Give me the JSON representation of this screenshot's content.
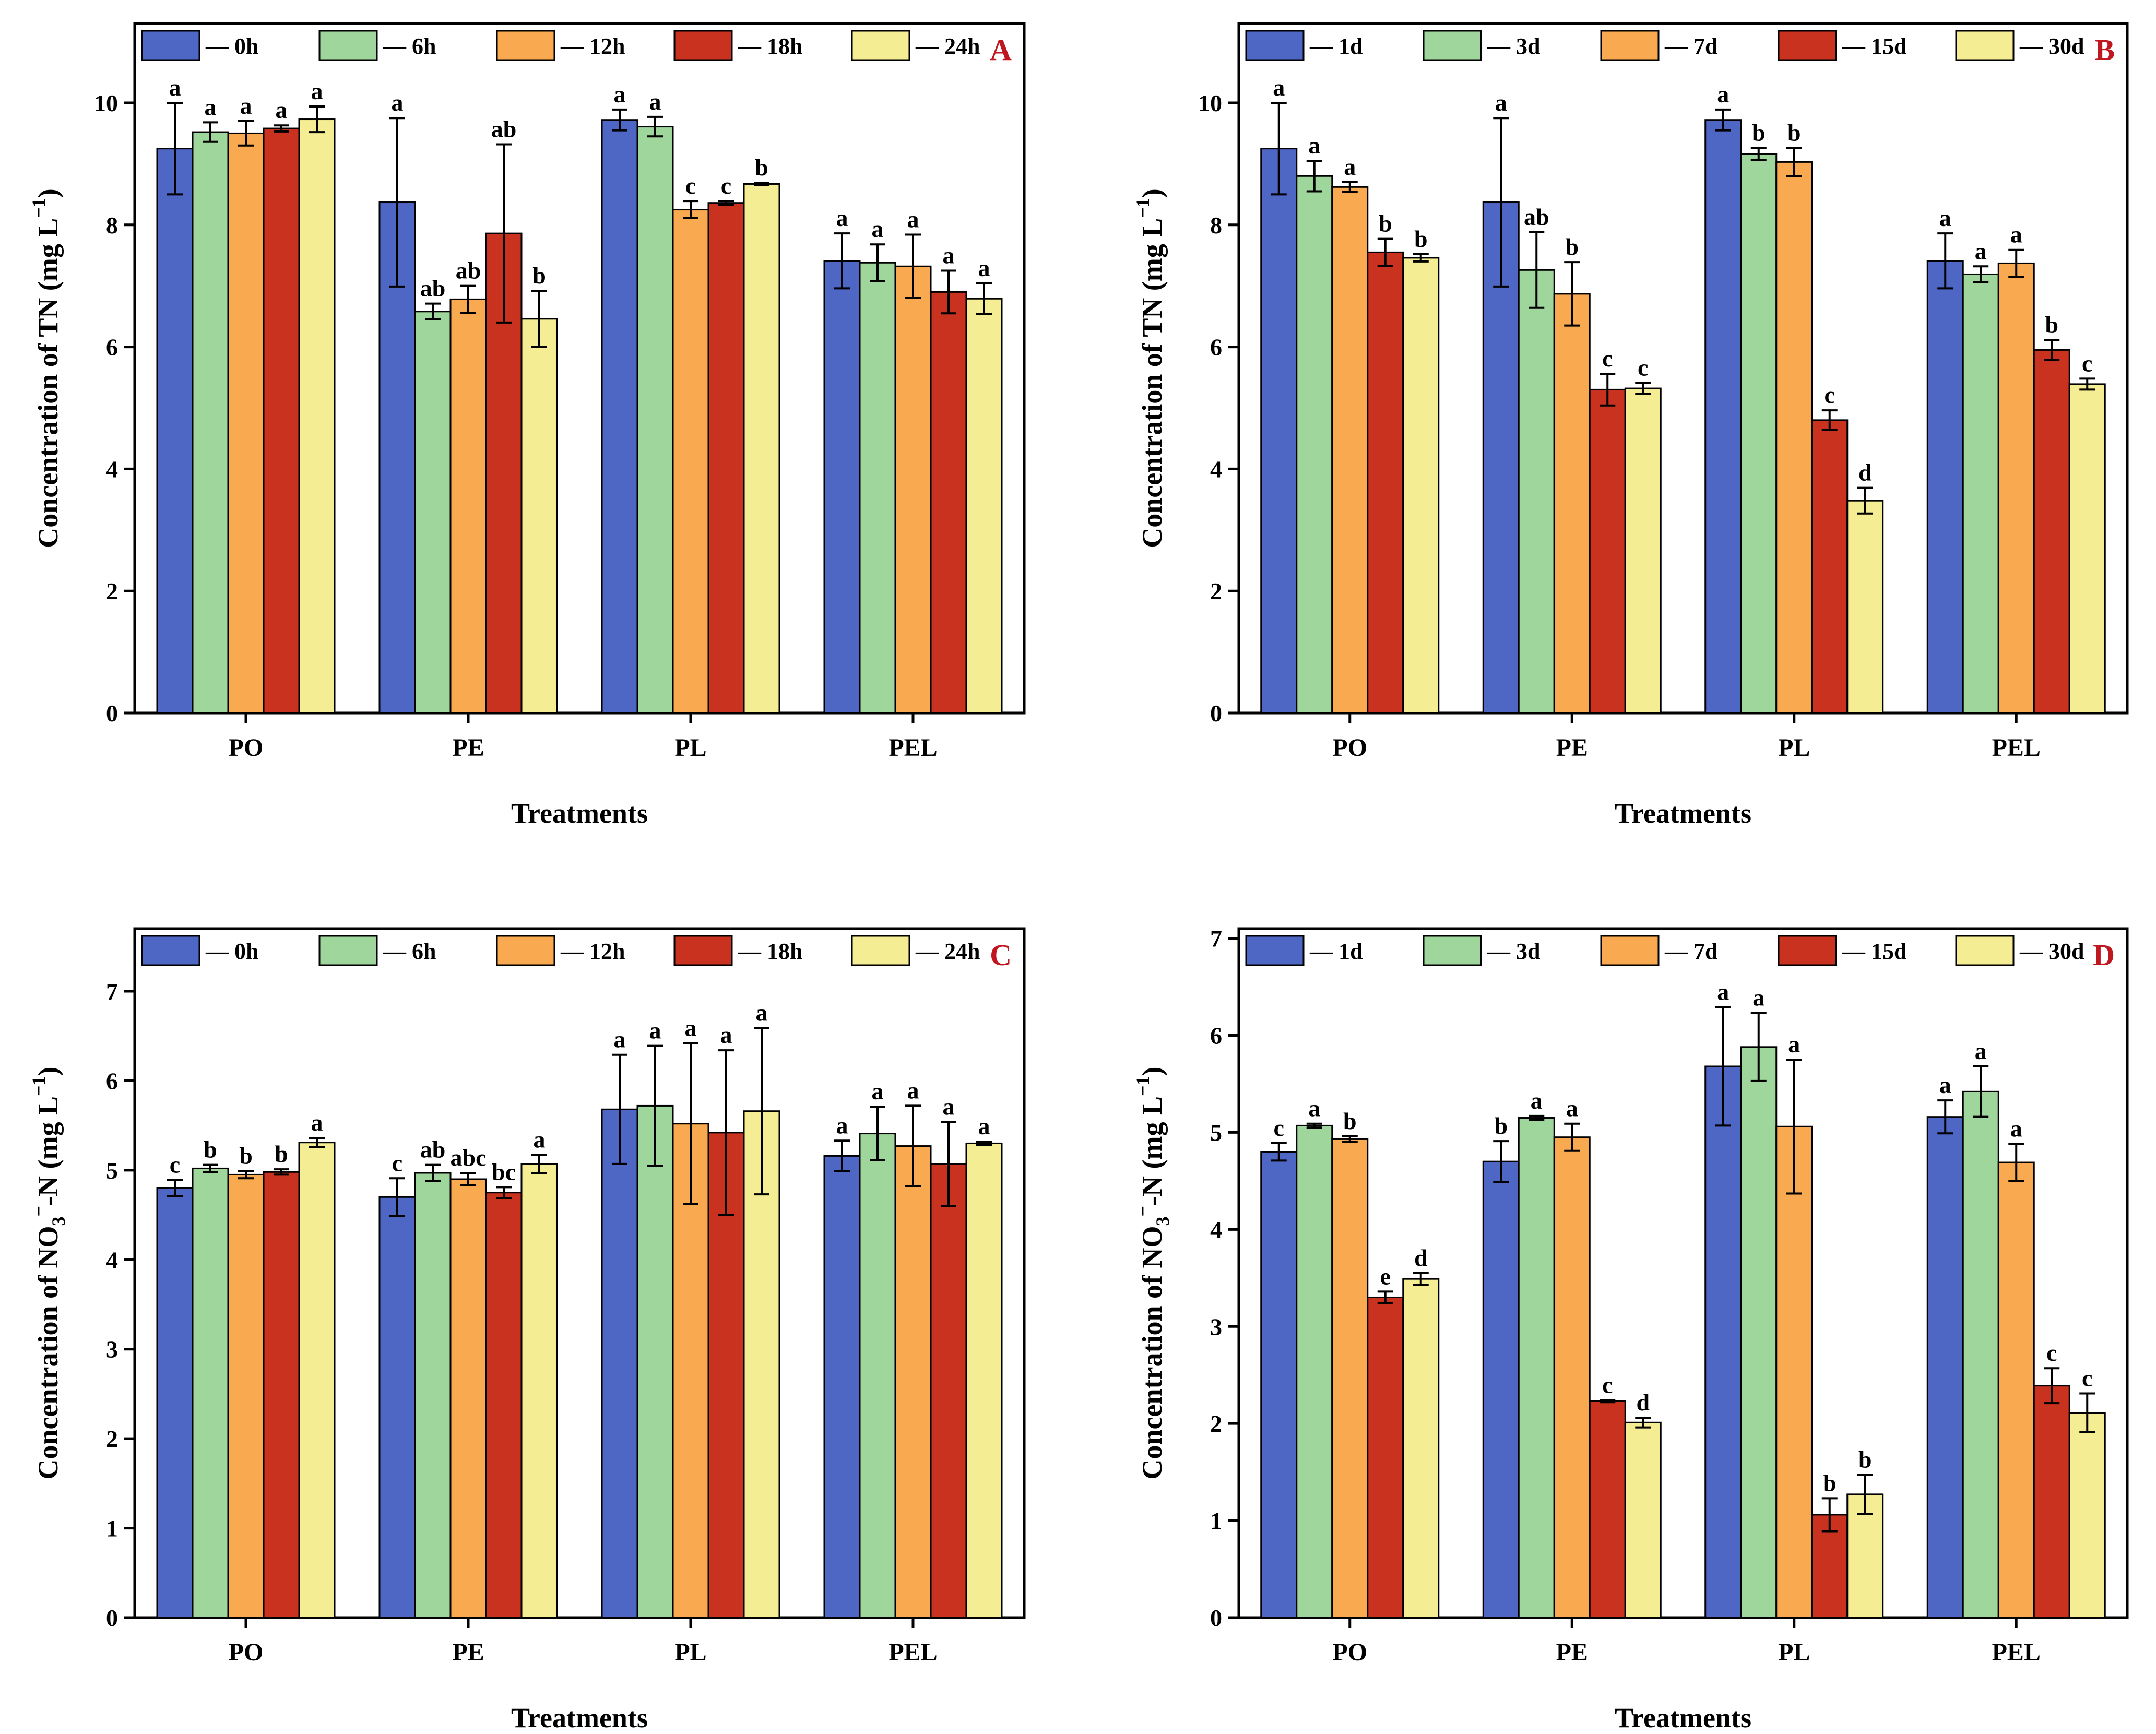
{
  "figure": {
    "colors": [
      "#4e66c4",
      "#9fd69c",
      "#f9a94f",
      "#c9321f",
      "#f5ed93"
    ],
    "panel_letter_color": "#c0161f"
  },
  "chart_data": [
    {
      "id": "A",
      "type": "bar",
      "panel_letter": "A",
      "xlabel": "Treatments",
      "ylabel": "Concentration of TN (mg L",
      "ylabel_sup": "−1",
      "ylabel_close": ")",
      "ylim": [
        0,
        11.3
      ],
      "yticks": [
        0,
        2,
        4,
        6,
        8,
        10
      ],
      "ytick_labels": [
        "0",
        "2",
        "4",
        "6",
        "8",
        "10"
      ],
      "categories": [
        "PO",
        "PE",
        "PL",
        "PEL"
      ],
      "legend": [
        "— 0h",
        "— 6h",
        "— 12h",
        "— 18h",
        "— 24h"
      ],
      "series": [
        {
          "name": "0h",
          "values": [
            9.25,
            8.37,
            9.72,
            7.41
          ],
          "errors": [
            0.75,
            1.38,
            0.17,
            0.45
          ],
          "labels": [
            "a",
            "a",
            "a",
            "a"
          ]
        },
        {
          "name": "6h",
          "values": [
            9.52,
            6.58,
            9.61,
            7.38
          ],
          "errors": [
            0.16,
            0.13,
            0.16,
            0.3
          ],
          "labels": [
            "a",
            "ab",
            "a",
            "a"
          ]
        },
        {
          "name": "12h",
          "values": [
            9.5,
            6.78,
            8.25,
            7.32
          ],
          "errors": [
            0.2,
            0.22,
            0.14,
            0.52
          ],
          "labels": [
            "a",
            "ab",
            "c",
            "a"
          ]
        },
        {
          "name": "18h",
          "values": [
            9.58,
            7.86,
            8.36,
            6.9
          ],
          "errors": [
            0.05,
            1.46,
            0.03,
            0.35
          ],
          "labels": [
            "a",
            "ab",
            "c",
            "a"
          ]
        },
        {
          "name": "24h",
          "values": [
            9.73,
            6.46,
            8.67,
            6.79
          ],
          "errors": [
            0.21,
            0.46,
            0.02,
            0.25
          ],
          "labels": [
            "a",
            "b",
            "b",
            "a"
          ]
        }
      ]
    },
    {
      "id": "B",
      "type": "bar",
      "panel_letter": "B",
      "xlabel": "Treatments",
      "ylabel": "Concentration of TN (mg L",
      "ylabel_sup": "−1",
      "ylabel_close": ")",
      "ylim": [
        0,
        11.3
      ],
      "yticks": [
        0,
        2,
        4,
        6,
        8,
        10
      ],
      "ytick_labels": [
        "0",
        "2",
        "4",
        "6",
        "8",
        "10"
      ],
      "categories": [
        "PO",
        "PE",
        "PL",
        "PEL"
      ],
      "legend": [
        "— 1d",
        "— 3d",
        "— 7d",
        "— 15d",
        "— 30d"
      ],
      "series": [
        {
          "name": "1d",
          "values": [
            9.25,
            8.37,
            9.72,
            7.41
          ],
          "errors": [
            0.75,
            1.38,
            0.17,
            0.45
          ],
          "labels": [
            "a",
            "a",
            "a",
            "a"
          ]
        },
        {
          "name": "3d",
          "values": [
            8.8,
            7.26,
            9.16,
            7.19
          ],
          "errors": [
            0.25,
            0.62,
            0.1,
            0.13
          ],
          "labels": [
            "a",
            "ab",
            "b",
            "a"
          ]
        },
        {
          "name": "7d",
          "values": [
            8.62,
            6.87,
            9.03,
            7.37
          ],
          "errors": [
            0.08,
            0.52,
            0.23,
            0.22
          ],
          "labels": [
            "a",
            "b",
            "b",
            "a"
          ]
        },
        {
          "name": "15d",
          "values": [
            7.55,
            5.3,
            4.8,
            5.95
          ],
          "errors": [
            0.22,
            0.26,
            0.16,
            0.16
          ],
          "labels": [
            "b",
            "c",
            "c",
            "b"
          ]
        },
        {
          "name": "30d",
          "values": [
            7.46,
            5.32,
            3.48,
            5.39
          ],
          "errors": [
            0.06,
            0.09,
            0.21,
            0.09
          ],
          "labels": [
            "b",
            "c",
            "d",
            "c"
          ]
        }
      ]
    },
    {
      "id": "C",
      "type": "bar",
      "panel_letter": "C",
      "xlabel": "Treatments",
      "ylabel": "Concentration of NO",
      "ylabel_sub": "3",
      "ylabel_sup": "−",
      "ylabel_close": "-N (mg L",
      "ylabel_sup2": "−1",
      "ylabel_end": ")",
      "ylim": [
        0,
        7.7
      ],
      "yticks": [
        0,
        1,
        2,
        3,
        4,
        5,
        6,
        7
      ],
      "ytick_labels": [
        "0",
        "1",
        "2",
        "3",
        "4",
        "5",
        "6",
        "7"
      ],
      "categories": [
        "PO",
        "PE",
        "PL",
        "PEL"
      ],
      "legend": [
        "— 0h",
        "— 6h",
        "— 12h",
        "— 18h",
        "— 24h"
      ],
      "series": [
        {
          "name": "0h",
          "values": [
            4.8,
            4.7,
            5.68,
            5.16
          ],
          "errors": [
            0.09,
            0.21,
            0.61,
            0.17
          ],
          "labels": [
            "c",
            "c",
            "a",
            "a"
          ]
        },
        {
          "name": "6h",
          "values": [
            5.02,
            4.97,
            5.72,
            5.41
          ],
          "errors": [
            0.04,
            0.09,
            0.67,
            0.3
          ],
          "labels": [
            "b",
            "ab",
            "a",
            "a"
          ]
        },
        {
          "name": "12h",
          "values": [
            4.95,
            4.9,
            5.52,
            5.27
          ],
          "errors": [
            0.04,
            0.07,
            0.9,
            0.45
          ],
          "labels": [
            "b",
            "abc",
            "a",
            "a"
          ]
        },
        {
          "name": "18h",
          "values": [
            4.98,
            4.75,
            5.42,
            5.07
          ],
          "errors": [
            0.03,
            0.06,
            0.92,
            0.47
          ],
          "labels": [
            "b",
            "bc",
            "a",
            "a"
          ]
        },
        {
          "name": "24h",
          "values": [
            5.31,
            5.07,
            5.66,
            5.3
          ],
          "errors": [
            0.05,
            0.1,
            0.93,
            0.02
          ],
          "labels": [
            "a",
            "a",
            "a",
            "a"
          ]
        }
      ]
    },
    {
      "id": "D",
      "type": "bar",
      "panel_letter": "D",
      "xlabel": "Treatments",
      "ylabel": "Concentration of NO",
      "ylabel_sub": "3",
      "ylabel_sup": "−",
      "ylabel_close": "-N (mg L",
      "ylabel_sup2": "−1",
      "ylabel_end": ")",
      "ylim": [
        0,
        7.1
      ],
      "yticks": [
        0,
        1,
        2,
        3,
        4,
        5,
        6,
        7
      ],
      "ytick_labels": [
        "0",
        "1",
        "2",
        "3",
        "4",
        "5",
        "6",
        "7"
      ],
      "categories": [
        "PO",
        "PE",
        "PL",
        "PEL"
      ],
      "legend": [
        "— 1d",
        "— 3d",
        "— 7d",
        "— 15d",
        "— 30d"
      ],
      "series": [
        {
          "name": "1d",
          "values": [
            4.8,
            4.7,
            5.68,
            5.16
          ],
          "errors": [
            0.09,
            0.21,
            0.61,
            0.17
          ],
          "labels": [
            "c",
            "b",
            "a",
            "a"
          ]
        },
        {
          "name": "3d",
          "values": [
            5.07,
            5.15,
            5.88,
            5.42
          ],
          "errors": [
            0.02,
            0.02,
            0.35,
            0.26
          ],
          "labels": [
            "a",
            "a",
            "a",
            "a"
          ]
        },
        {
          "name": "7d",
          "values": [
            4.93,
            4.95,
            5.06,
            4.69
          ],
          "errors": [
            0.03,
            0.14,
            0.69,
            0.19
          ],
          "labels": [
            "b",
            "a",
            "a",
            "a"
          ]
        },
        {
          "name": "15d",
          "values": [
            3.3,
            2.23,
            1.06,
            2.39
          ],
          "errors": [
            0.06,
            0.01,
            0.17,
            0.18
          ],
          "labels": [
            "e",
            "c",
            "b",
            "c"
          ]
        },
        {
          "name": "30d",
          "values": [
            3.49,
            2.01,
            1.27,
            2.11
          ],
          "errors": [
            0.06,
            0.05,
            0.2,
            0.2
          ],
          "labels": [
            "d",
            "d",
            "b",
            "c"
          ]
        }
      ]
    }
  ]
}
